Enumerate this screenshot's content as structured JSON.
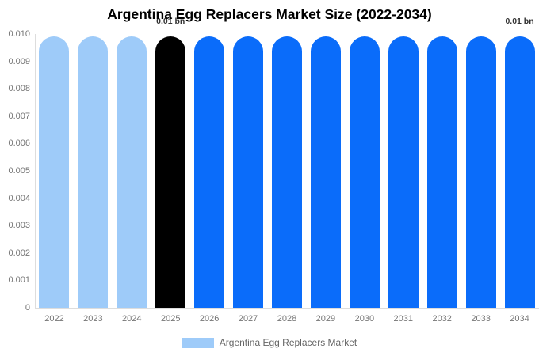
{
  "chart_data": {
    "type": "bar",
    "title": "Argentina Egg Replacers Market Size (2022-2034)",
    "unit": "bn",
    "categories": [
      "2022",
      "2023",
      "2024",
      "2025",
      "2026",
      "2027",
      "2028",
      "2029",
      "2030",
      "2031",
      "2032",
      "2033",
      "2034"
    ],
    "values": [
      0.0099,
      0.0099,
      0.0099,
      0.0099,
      0.0099,
      0.0099,
      0.0099,
      0.0099,
      0.0099,
      0.0099,
      0.0099,
      0.0099,
      0.0099
    ],
    "bar_colors": [
      "#9ecbf9",
      "#9ecbf9",
      "#9ecbf9",
      "#000000",
      "#0a6cfa",
      "#0a6cfa",
      "#0a6cfa",
      "#0a6cfa",
      "#0a6cfa",
      "#0a6cfa",
      "#0a6cfa",
      "#0a6cfa",
      "#0a6cfa"
    ],
    "ylim": [
      0,
      0.01
    ],
    "y_tick_labels": [
      "0.010",
      "0.009",
      "0.008",
      "0.007",
      "0.006",
      "0.005",
      "0.004",
      "0.003",
      "0.002",
      "0.001",
      "0"
    ],
    "grid": false,
    "annotations": [
      {
        "text": "0.01 bn",
        "bar_index": 3
      },
      {
        "text": "0.01 bn",
        "bar_index": 12
      }
    ],
    "legend": {
      "position": "bottom",
      "swatch_color": "#9ecbf9",
      "label": "Argentina Egg Replacers Market"
    },
    "colors": {
      "highlight_bar": "#000000",
      "forecast_bar": "#0a6cfa",
      "historic_bar": "#9ecbf9",
      "axis_line": "#dddddd",
      "tick_text": "#757575",
      "title_text": "#000000",
      "annotation_text": "#333333"
    }
  }
}
